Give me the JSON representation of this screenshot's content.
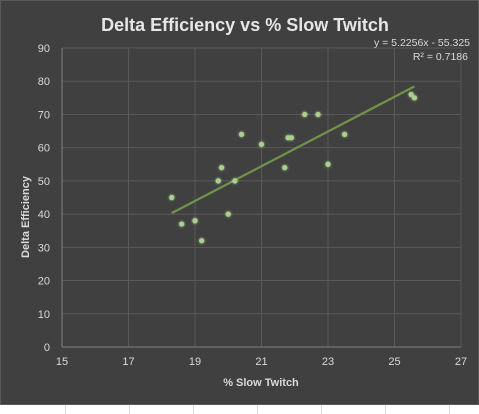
{
  "chart_data": {
    "type": "scatter",
    "title": "Delta Efficiency vs % Slow Twitch",
    "xlabel": "% Slow Twitch",
    "ylabel": "Delta Efficiency",
    "xlim": [
      15,
      27
    ],
    "ylim": [
      0,
      90
    ],
    "xticks": [
      15,
      17,
      19,
      21,
      23,
      25,
      27
    ],
    "yticks": [
      0,
      10,
      20,
      30,
      40,
      50,
      60,
      70,
      80,
      90
    ],
    "grid": true,
    "series": [
      {
        "points": [
          {
            "x": 18.3,
            "y": 45
          },
          {
            "x": 18.6,
            "y": 37
          },
          {
            "x": 19.0,
            "y": 38
          },
          {
            "x": 19.2,
            "y": 32
          },
          {
            "x": 19.7,
            "y": 50
          },
          {
            "x": 19.8,
            "y": 54
          },
          {
            "x": 20.0,
            "y": 40
          },
          {
            "x": 20.2,
            "y": 50
          },
          {
            "x": 20.4,
            "y": 64
          },
          {
            "x": 21.0,
            "y": 61
          },
          {
            "x": 21.7,
            "y": 54
          },
          {
            "x": 21.8,
            "y": 63
          },
          {
            "x": 21.9,
            "y": 63
          },
          {
            "x": 22.3,
            "y": 70
          },
          {
            "x": 22.7,
            "y": 70
          },
          {
            "x": 23.0,
            "y": 55
          },
          {
            "x": 23.5,
            "y": 64
          },
          {
            "x": 25.5,
            "y": 76
          },
          {
            "x": 25.6,
            "y": 75
          }
        ]
      }
    ],
    "trendline": {
      "type": "linear",
      "slope": 5.2256,
      "intercept": -55.325,
      "x_range": [
        18.3,
        25.6
      ],
      "equation_label": "y = 5.2256x - 55.325",
      "r2_label": "R² = 0.7186"
    },
    "colors": {
      "background": "#404040",
      "gridline": "#595959",
      "text": "#d9d9d9",
      "title": "#e6e6e6",
      "point": "#a9d18e",
      "trendline": "#70934a"
    }
  }
}
